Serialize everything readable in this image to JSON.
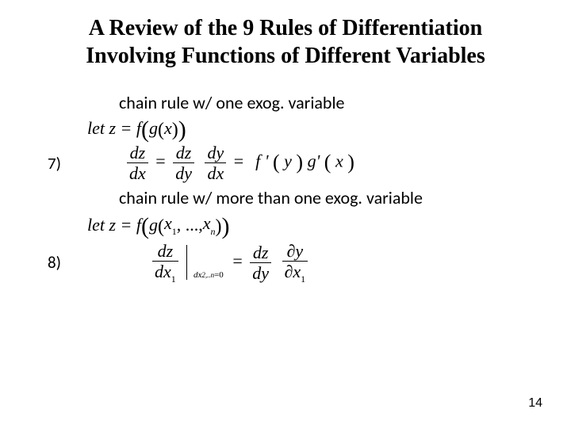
{
  "title_line1": "A Review of the 9 Rules of Differentiation",
  "title_line2": "Involving Functions of Different Variables",
  "note1": "chain rule w/ one exog. variable",
  "let1_pre": "let z = f",
  "let1_inner": "g",
  "let1_arg": "x",
  "rule7_label": "7)",
  "r7_dz": "dz",
  "r7_dx": "dx",
  "r7_dy": "dy",
  "r7_fprime": "f '",
  "r7_y": "y",
  "r7_gprime": "g'",
  "r7_x": "x",
  "note2": "chain rule w/ more than one exog. variable",
  "let2_pre": "let z = f",
  "let2_inner": "g",
  "let2_x1": "x",
  "let2_xn": "x",
  "let2_dots": ", ...,",
  "rule8_label": "8)",
  "r8_dz": "dz",
  "r8_dx1": "dx",
  "r8_barsub": "dx",
  "r8_barsub2": "=0",
  "r8_dy": "dy",
  "r8_py": "y",
  "r8_px1": "x",
  "r8_eq": "=",
  "page_number": "14",
  "sub_1": "1",
  "sub_n": "n",
  "sub_2n": "2,..n",
  "partial": "∂",
  "style": {
    "bg": "#ffffff",
    "text": "#000000",
    "title_fontsize_pt": 21,
    "body_fontsize_pt": 16,
    "pagenum_fontsize_pt": 12,
    "title_font": "Times New Roman",
    "body_font": "Calibri",
    "math_font": "Cambria Math"
  }
}
